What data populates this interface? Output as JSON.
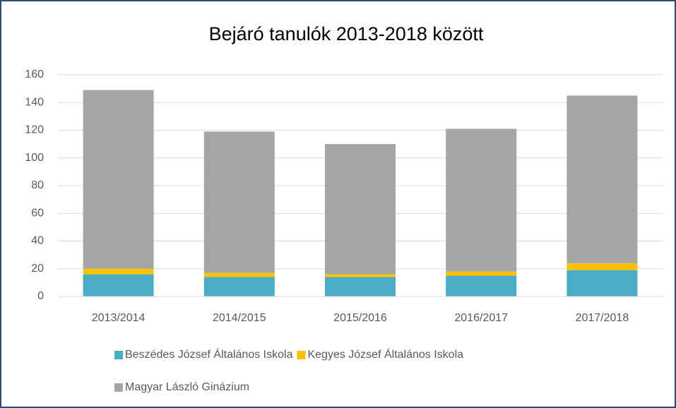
{
  "chart_data": {
    "type": "stacked_bar",
    "title": "Bejáró tanulók 2013-2018 között",
    "categories": [
      "2013/2014",
      "2014/2015",
      "2015/2016",
      "2016/2017",
      "2017/2018"
    ],
    "series": [
      {
        "name": "Beszédes József Általános Iskola",
        "color": "#4bacc6",
        "values": [
          16,
          14,
          14,
          15,
          19
        ]
      },
      {
        "name": "Kegyes József Általános Iskola",
        "color": "#ffc000",
        "values": [
          4,
          3,
          2,
          3,
          5
        ]
      },
      {
        "name": "Magyar László Ginázium",
        "color": "#a5a5a5",
        "values": [
          129,
          102,
          94,
          103,
          121
        ]
      }
    ],
    "ylim": [
      0,
      160
    ],
    "yticks": [
      0,
      20,
      40,
      60,
      80,
      100,
      120,
      140,
      160
    ],
    "grid": true,
    "legend": "bottom"
  }
}
